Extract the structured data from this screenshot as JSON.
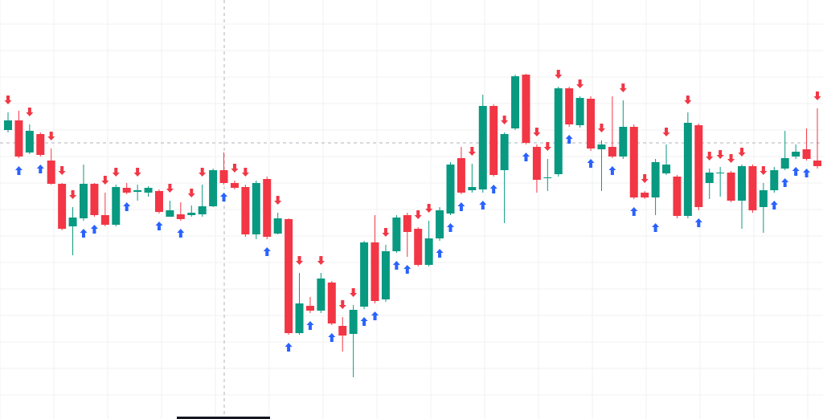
{
  "chart_data": {
    "type": "candlestick",
    "ylim": [
      0,
      522
    ],
    "up_color": "#089981",
    "down_color": "#f23645",
    "buy_color": "#2962ff",
    "sell_color": "#f23645",
    "open": [
      360,
      372,
      332,
      355,
      322,
      293,
      240,
      250,
      293,
      254,
      242,
      288,
      283,
      282,
      284,
      252,
      255,
      254,
      255,
      265,
      310,
      294,
      289,
      230,
      299,
      231,
      249,
      107,
      141,
      135,
      170,
      116,
      106,
      140,
      220,
      149,
      209,
      254,
      237,
      192,
      225,
      256,
      325,
      285,
      286,
      390,
      310,
      362,
      429,
      339,
      300,
      305,
      412,
      366,
      399,
      336,
      339,
      327,
      364,
      282,
      276,
      306,
      302,
      253,
      366,
      294,
      306,
      307,
      272,
      315,
      264,
      285,
      312,
      327,
      336,
      322
    ],
    "high": [
      382,
      384,
      367,
      357,
      337,
      294,
      264,
      317,
      294,
      282,
      292,
      294,
      292,
      290,
      286,
      272,
      270,
      266,
      292,
      312,
      332,
      297,
      292,
      297,
      302,
      257,
      250,
      182,
      152,
      182,
      172,
      127,
      142,
      222,
      254,
      217,
      254,
      257,
      239,
      247,
      264,
      320,
      339,
      318,
      404,
      392,
      357,
      429,
      430,
      342,
      324,
      414,
      414,
      402,
      402,
      347,
      402,
      397,
      367,
      284,
      324,
      342,
      304,
      382,
      368,
      312,
      314,
      309,
      317,
      317,
      294,
      314,
      359,
      342,
      362,
      387
    ],
    "low": [
      357,
      325,
      330,
      327,
      292,
      235,
      204,
      247,
      252,
      240,
      240,
      280,
      272,
      277,
      256,
      252,
      247,
      252,
      252,
      264,
      292,
      286,
      227,
      224,
      224,
      230,
      105,
      105,
      132,
      132,
      117,
      84,
      52,
      137,
      144,
      146,
      207,
      202,
      190,
      190,
      222,
      254,
      280,
      282,
      282,
      302,
      244,
      360,
      342,
      282,
      284,
      302,
      364,
      363,
      334,
      284,
      325,
      324,
      274,
      274,
      254,
      304,
      250,
      250,
      260,
      274,
      277,
      270,
      237,
      257,
      232,
      282,
      310,
      324,
      322,
      312
    ],
    "close": [
      372,
      327,
      359,
      329,
      293,
      237,
      251,
      293,
      254,
      242,
      289,
      282,
      285,
      288,
      258,
      260,
      249,
      257,
      265,
      310,
      294,
      288,
      230,
      294,
      227,
      250,
      107,
      144,
      135,
      175,
      119,
      104,
      136,
      220,
      147,
      209,
      251,
      233,
      192,
      225,
      260,
      317,
      282,
      289,
      390,
      304,
      355,
      427,
      344,
      298,
      301,
      412,
      367,
      400,
      337,
      342,
      327,
      364,
      276,
      276,
      320,
      317,
      253,
      369,
      264,
      307,
      307,
      272,
      315,
      260,
      285,
      310,
      325,
      333,
      324,
      315
    ],
    "signals": [
      "down",
      "up",
      "down",
      "up",
      "down",
      "down",
      "down",
      "up",
      "up",
      "down",
      "down",
      "up",
      "down",
      null,
      "up",
      "down",
      "up",
      "down",
      "down",
      null,
      "up",
      "down",
      "down",
      null,
      "up",
      "down",
      "up",
      "down",
      "up",
      "down",
      "up",
      "down",
      "down",
      "up",
      "up",
      "down",
      "up",
      "up",
      "down",
      "down",
      "up",
      "up",
      "up",
      "down",
      "up",
      "up",
      "down",
      null,
      "up",
      "down",
      "down",
      "down",
      "up",
      "down",
      "up",
      "down",
      "up",
      "down",
      "up",
      "down",
      "up",
      "down",
      null,
      "down",
      "up",
      "down",
      "down",
      "down",
      "down",
      null,
      "down",
      "up",
      "up",
      "up",
      "up",
      "down"
    ]
  }
}
